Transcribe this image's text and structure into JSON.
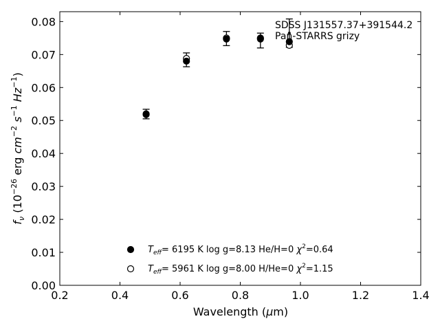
{
  "chart_data": {
    "type": "scatter",
    "xlabel": "Wavelength (μm)",
    "ylabel": "f_ν (10^−26 erg cm^−2 s^−1 Hz^−1)",
    "xlim": [
      0.2,
      1.4
    ],
    "ylim": [
      0.0,
      0.083
    ],
    "x_ticks": [
      0.2,
      0.4,
      0.6,
      0.8,
      1.0,
      1.2,
      1.4
    ],
    "y_ticks": [
      0.0,
      0.01,
      0.02,
      0.03,
      0.04,
      0.05,
      0.06,
      0.07,
      0.08
    ],
    "x_tick_labels": [
      "0.2",
      "0.4",
      "0.6",
      "0.8",
      "1.0",
      "1.2",
      "1.4"
    ],
    "y_tick_labels": [
      "0.00",
      "0.01",
      "0.02",
      "0.03",
      "0.04",
      "0.05",
      "0.06",
      "0.07",
      "0.08"
    ],
    "annotation": [
      "SDSS J131557.37+391544.2",
      "Pan-STARRS grizy"
    ],
    "grid": false,
    "legend_position": "bottom-center",
    "observed": {
      "x": [
        0.487,
        0.621,
        0.754,
        0.867,
        0.963
      ],
      "y": [
        0.0519,
        0.0683,
        0.0748,
        0.0742,
        0.0765
      ],
      "err_lo": [
        0.0505,
        0.0663,
        0.0727,
        0.072,
        0.0722
      ],
      "err_hi": [
        0.0534,
        0.0705,
        0.077,
        0.0765,
        0.0808
      ]
    },
    "series": [
      {
        "name": "Teff= 6195 K log g=8.13 He/H=0 χ2=0.64",
        "marker": "filled-circle",
        "x": [
          0.487,
          0.621,
          0.754,
          0.867,
          0.963
        ],
        "y": [
          0.052,
          0.068,
          0.0747,
          0.075,
          0.0739
        ]
      },
      {
        "name": "Teff= 5961 K log g=8.00 H/He=0 χ2=1.15",
        "marker": "open-circle",
        "x": [
          0.487,
          0.621,
          0.754,
          0.867,
          0.963
        ],
        "y": [
          0.0518,
          0.0688,
          0.075,
          0.0747,
          0.0728
        ]
      }
    ]
  },
  "legend": {
    "entries": [
      {
        "teff": "6195",
        "logg": "8.13",
        "comp_label": "He/H",
        "comp_value": "0",
        "chi2": "0.64"
      },
      {
        "teff": "5961",
        "logg": "8.00",
        "comp_label": "H/He",
        "comp_value": "0",
        "chi2": "1.15"
      }
    ]
  },
  "colors": {
    "axis": "#000000",
    "marker": "#000000",
    "background": "#ffffff"
  }
}
